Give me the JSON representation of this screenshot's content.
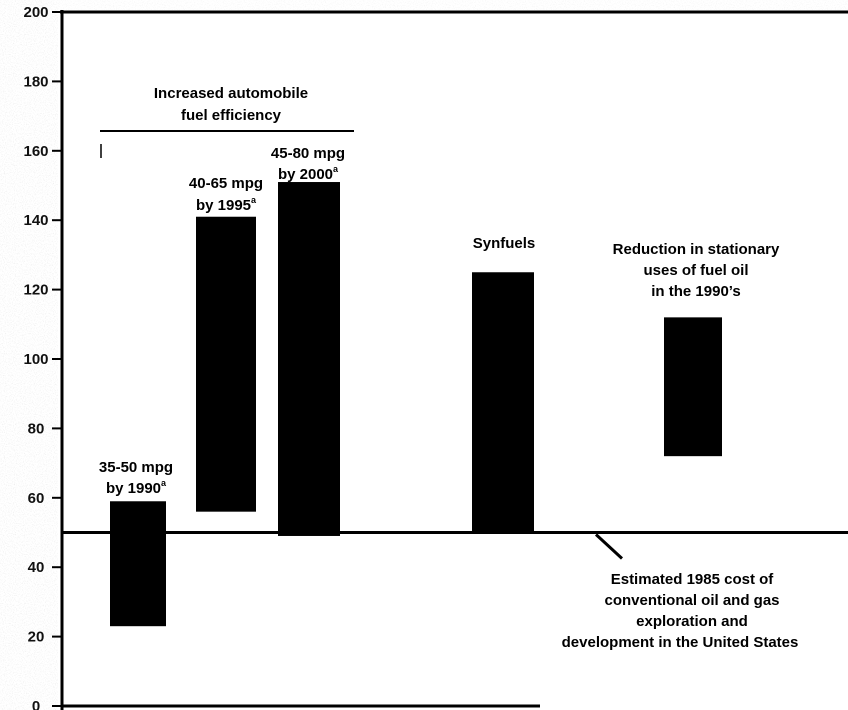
{
  "chart_data": {
    "type": "bar",
    "subtype": "floating-range",
    "title": "",
    "xlabel": "",
    "ylabel": "",
    "ylim": [
      0,
      200
    ],
    "yticks": [
      "0",
      "20",
      "40",
      "60",
      "80",
      "100",
      "120",
      "140",
      "160",
      "180",
      "200"
    ],
    "grid": false,
    "legend": "none",
    "bar_color": "#000000",
    "bars": [
      {
        "id": "mpg-1990",
        "low": 23,
        "high": 59,
        "label_line1": "35-50 mpg",
        "label_line2": "by 1990",
        "label_sup": "a"
      },
      {
        "id": "mpg-1995",
        "low": 56,
        "high": 141,
        "label_line1": "40-65 mpg",
        "label_line2": "by 1995",
        "label_sup": "a"
      },
      {
        "id": "mpg-2000",
        "low": 49,
        "high": 151,
        "label_line1": "45-80 mpg",
        "label_line2": "by 2000",
        "label_sup": "a"
      },
      {
        "id": "synfuels",
        "low": 50,
        "high": 125,
        "label_line1": "Synfuels"
      },
      {
        "id": "fuel-oil",
        "low": 72,
        "high": 112,
        "label_line1": "Reduction in stationary",
        "label_line2": "uses of fuel oil",
        "label_line3": "in the 1990’s"
      }
    ],
    "reference_line": {
      "value": 50,
      "label": [
        "Estimated 1985 cost of",
        "conventional oil and gas",
        "exploration and",
        "development in the United States"
      ]
    },
    "group_annotation": {
      "line1": "Increased automobile",
      "line2": "fuel efficiency"
    }
  }
}
